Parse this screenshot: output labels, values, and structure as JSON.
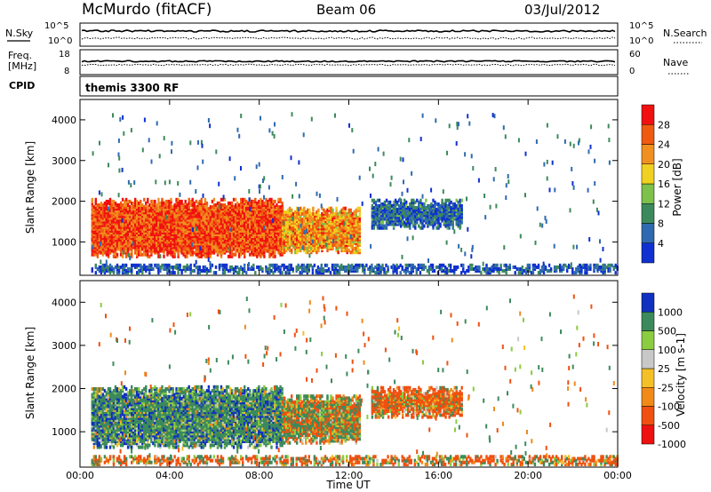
{
  "header": {
    "station": "McMurdo (fitACF)",
    "beam": "Beam 06",
    "date": "03/Jul/2012"
  },
  "sky_panel": {
    "left_label": "N.Sky",
    "right_label": "N.Search",
    "left_ticks": [
      "10^5",
      "10^0"
    ],
    "right_ticks": [
      "10^5",
      "10^0"
    ]
  },
  "freq_panel": {
    "left_label_1": "Freq.",
    "left_label_2": "[MHz]",
    "right_label": "Nave",
    "left_ticks": [
      "18",
      "8"
    ],
    "right_ticks": [
      "60",
      "0"
    ]
  },
  "cpid": {
    "label": "CPID",
    "program": "themis 3300 RF"
  },
  "colors": {
    "power_scale": [
      "#1030d0",
      "#2f6ab0",
      "#3c8a5c",
      "#7dc04c",
      "#f0d020",
      "#f09020",
      "#f05a10",
      "#f01010"
    ],
    "velocity_scale": [
      "#ee1010",
      "#f05010",
      "#f08a18",
      "#f4c028",
      "#c8c8c8",
      "#8ccc40",
      "#3c8a5c",
      "#1030c0"
    ]
  },
  "chart_data": [
    {
      "type": "heatmap",
      "name": "Power",
      "xlabel": "Time UT",
      "ylabel": "Slant Range [km]",
      "colorbar_label": "Power [dB]",
      "colorbar_ticks": [
        "4",
        "8",
        "12",
        "16",
        "20",
        "24",
        "28"
      ],
      "x_ticks": [
        "00:00",
        "04:00",
        "08:00",
        "12:00",
        "16:00",
        "20:00",
        "00:00"
      ],
      "y_ticks": [
        "1000",
        "2000",
        "3000",
        "4000"
      ],
      "xlim_hours": [
        0,
        24
      ],
      "ylim_km": [
        180,
        4500
      ],
      "color_range_db": [
        0,
        32
      ],
      "echo_regions": [
        {
          "t_start": 0.5,
          "t_end": 9.0,
          "r_min": 600,
          "r_max": 2000,
          "value": 27
        },
        {
          "t_start": 9.0,
          "t_end": 12.5,
          "r_min": 700,
          "r_max": 1800,
          "value": 22
        },
        {
          "t_start": 13.0,
          "t_end": 17.0,
          "r_min": 1300,
          "r_max": 2000,
          "value": 6
        },
        {
          "t_start": 0.5,
          "t_end": 24.0,
          "r_min": 200,
          "r_max": 400,
          "value": 5
        }
      ]
    },
    {
      "type": "heatmap",
      "name": "Velocity",
      "xlabel": "Time UT",
      "ylabel": "Slant Range [km]",
      "colorbar_label": "Velocity [m s-1]",
      "colorbar_ticks": [
        "1000",
        "500",
        "100",
        "25",
        "-25",
        "-100",
        "-500",
        "-1000"
      ],
      "x_ticks": [
        "00:00",
        "04:00",
        "08:00",
        "12:00",
        "16:00",
        "20:00",
        "00:00"
      ],
      "y_ticks": [
        "1000",
        "2000",
        "3000",
        "4000"
      ],
      "xlim_hours": [
        0,
        24
      ],
      "ylim_km": [
        180,
        4500
      ],
      "color_range_ms": [
        -1000,
        1000
      ],
      "echo_regions": [
        {
          "t_start": 0.5,
          "t_end": 9.0,
          "r_min": 600,
          "r_max": 2000,
          "value": 300
        },
        {
          "t_start": 9.0,
          "t_end": 12.5,
          "r_min": 700,
          "r_max": 1800,
          "value": 50
        },
        {
          "t_start": 13.0,
          "t_end": 17.0,
          "r_min": 1300,
          "r_max": 2000,
          "value": -150
        },
        {
          "t_start": 0.5,
          "t_end": 24.0,
          "r_min": 200,
          "r_max": 400,
          "value": -100
        }
      ]
    }
  ]
}
